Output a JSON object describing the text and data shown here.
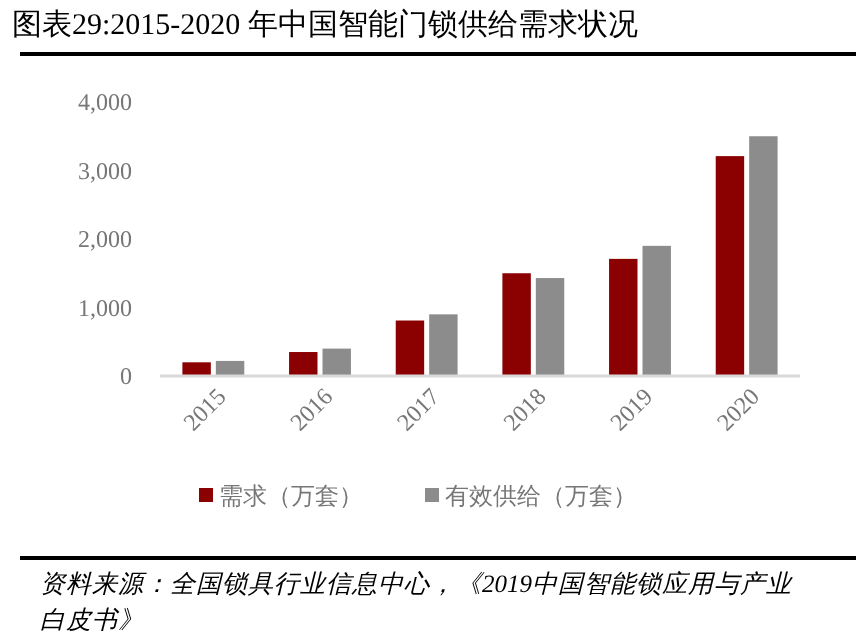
{
  "chart_data": {
    "type": "bar",
    "title": "图表29:2015-2020 年中国智能门锁供给需求状况",
    "categories": [
      "2015",
      "2016",
      "2017",
      "2018",
      "2019",
      "2020"
    ],
    "series": [
      {
        "name": "需求（万套）",
        "color": "#8b0000",
        "values": [
          200,
          350,
          810,
          1500,
          1710,
          3210
        ]
      },
      {
        "name": "有效供给（万套）",
        "color": "#8c8c8c",
        "values": [
          220,
          400,
          900,
          1430,
          1900,
          3500
        ]
      }
    ],
    "ylim": [
      0,
      4000
    ],
    "yticks": [
      0,
      {
        "value": 1000,
        "label": "1,000"
      },
      {
        "value": 2000,
        "label": "2,000"
      },
      {
        "value": 3000,
        "label": "3,000"
      },
      {
        "value": 4000,
        "label": "4,000"
      }
    ],
    "grid": false,
    "legend": "bottom",
    "annotations": [
      "资料来源：全国锁具行业信息中心，《2019中国智能锁应用与产业白皮书》"
    ]
  }
}
